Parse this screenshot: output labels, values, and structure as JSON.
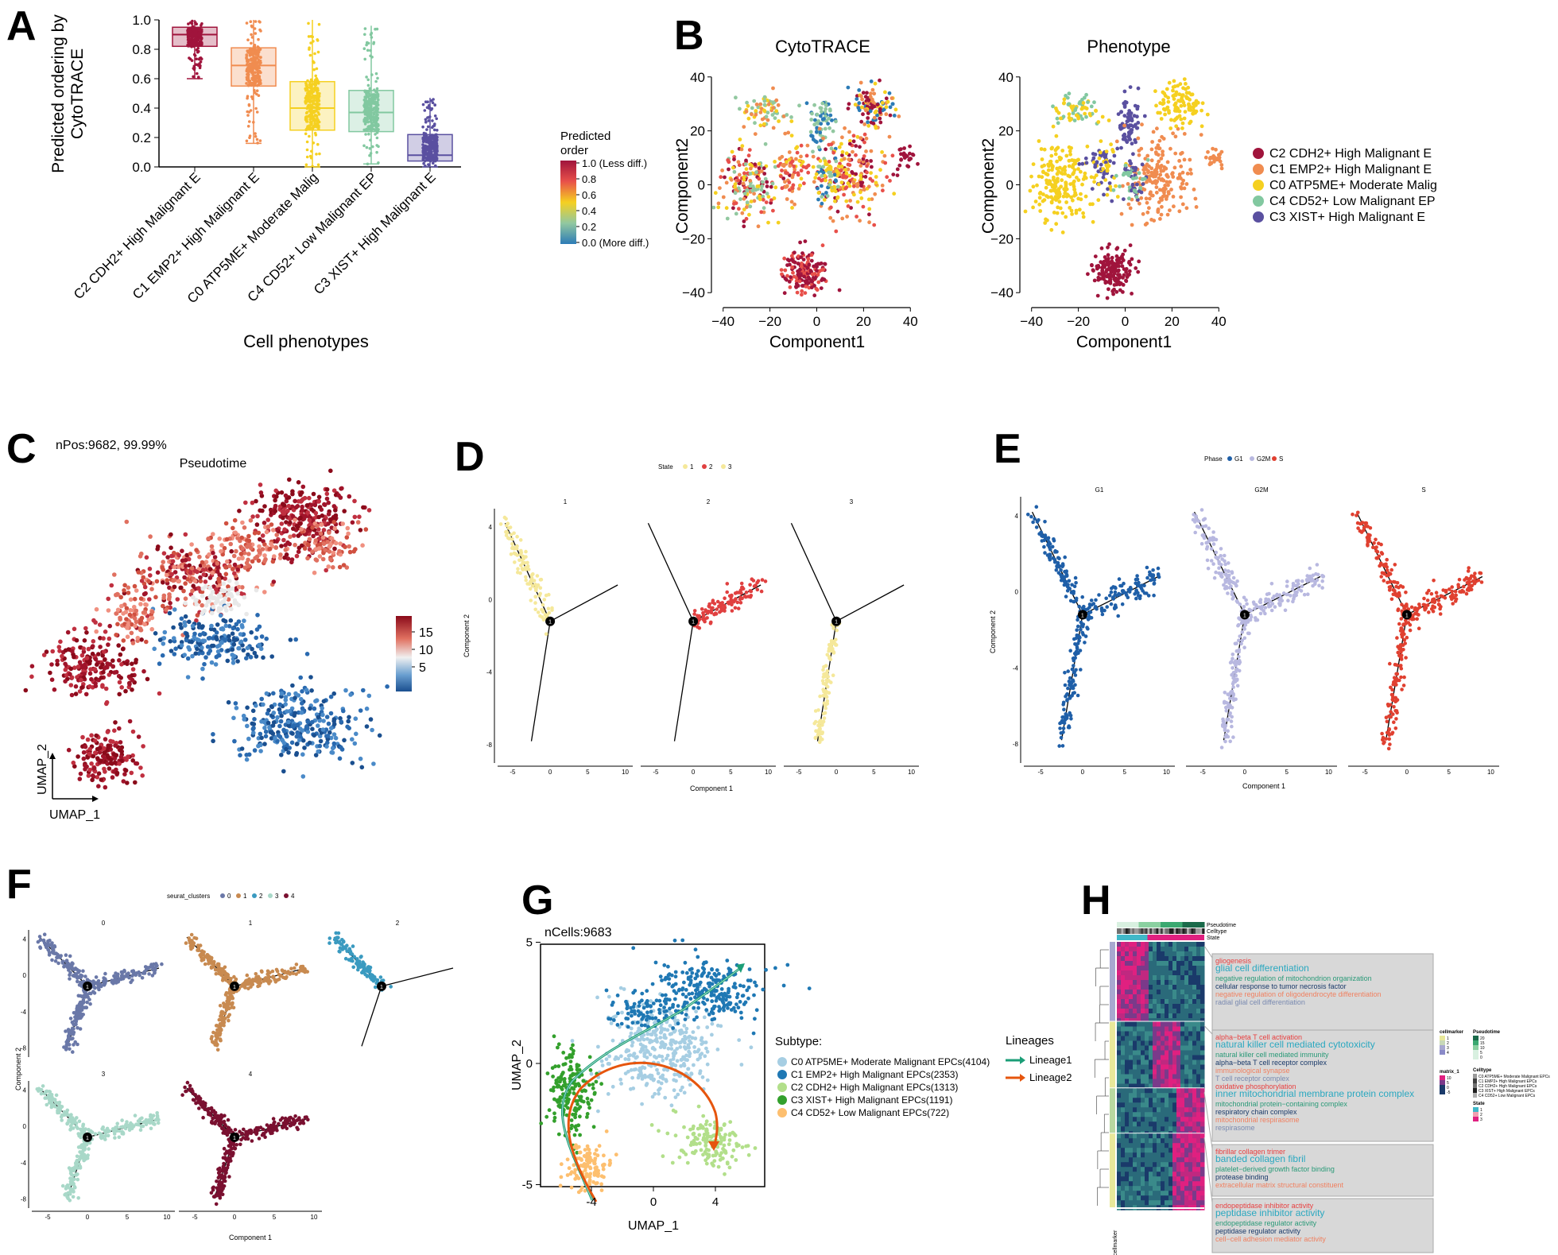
{
  "panel_letters": [
    "A",
    "B",
    "C",
    "D",
    "E",
    "F",
    "G",
    "H"
  ],
  "chart_data": [
    {
      "panel": "A",
      "type": "box",
      "xlabel": "Cell phenotypes",
      "ylabel_lines": [
        "Predicted ordering by",
        "CytoTRACE"
      ],
      "ylim": [
        0,
        1
      ],
      "yticks": [
        "0.0",
        "0.2",
        "0.4",
        "0.6",
        "0.8",
        "1.0"
      ],
      "categories": [
        "C2 CDH2+ High Malignant E",
        "C1 EMP2+ High Malignant E",
        "C0 ATP5ME+ Moderate Malig",
        "C4 CD52+ Low Malignant EP",
        "C3 XIST+ High Malignant E"
      ],
      "colors": [
        "#a0143c",
        "#f08c50",
        "#f5d020",
        "#82c8a0",
        "#5a50a0"
      ],
      "boxes": [
        {
          "q1": 0.82,
          "median": 0.9,
          "q3": 0.95,
          "low": 0.6,
          "high": 1.0
        },
        {
          "q1": 0.55,
          "median": 0.69,
          "q3": 0.81,
          "low": 0.16,
          "high": 1.0
        },
        {
          "q1": 0.25,
          "median": 0.4,
          "q3": 0.58,
          "low": 0.0,
          "high": 1.0
        },
        {
          "q1": 0.24,
          "median": 0.37,
          "q3": 0.52,
          "low": 0.02,
          "high": 0.96
        },
        {
          "q1": 0.04,
          "median": 0.08,
          "q3": 0.22,
          "low": 0.0,
          "high": 0.47
        }
      ]
    },
    {
      "panel": "B",
      "type": "scatter",
      "subplots": [
        {
          "title": "CytoTRACE",
          "xlabel": "Component1",
          "ylabel": "Component2"
        },
        {
          "title": "Phenotype",
          "xlabel": "Component1",
          "ylabel": "Component2"
        }
      ],
      "xticks": [
        "−40",
        "−20",
        "0",
        "20",
        "40"
      ],
      "yticks": [
        "−40",
        "−20",
        "0",
        "20",
        "40"
      ],
      "xlim": [
        -45,
        45
      ],
      "ylim": [
        -42,
        42
      ],
      "colorbar": {
        "title_lines": [
          "Predicted",
          "order"
        ],
        "labels": [
          "1.0 (Less diff.)",
          "0.8",
          "0.6",
          "0.4",
          "0.2",
          "0.0 (More diff.)"
        ],
        "colors": [
          "#a0143c",
          "#e8504a",
          "#f5d020",
          "#92c8a0",
          "#2c7bb6"
        ]
      },
      "legend": [
        {
          "label": "C2 CDH2+ High Malignant E",
          "color": "#a0143c"
        },
        {
          "label": "C1 EMP2+ High Malignant E",
          "color": "#f08c50"
        },
        {
          "label": "C0 ATP5ME+ Moderate Malig",
          "color": "#f5d020"
        },
        {
          "label": "C4 CD52+ Low Malignant EP",
          "color": "#82c8a0"
        },
        {
          "label": "C3 XIST+ High Malignant E",
          "color": "#5a50a0"
        }
      ]
    },
    {
      "panel": "C",
      "type": "scatter",
      "title": "Pseudotime",
      "annotation": "nPos:9682, 99.99%",
      "xlabel": "UMAP_1",
      "ylabel": "UMAP_2",
      "colorbar_labels": [
        "15",
        "10",
        "5"
      ],
      "colorbar_colors": [
        "#8b0a1a",
        "#e07060",
        "#f0f0f0",
        "#6a9fd0",
        "#1a4f8f"
      ]
    },
    {
      "panel": "D",
      "type": "trajectory",
      "legend_title": "State",
      "legend_items": [
        "1",
        "2",
        "3"
      ],
      "legend_colors": [
        "#f5e89a",
        "#e04040",
        "#f5e89a"
      ],
      "facets": [
        "1",
        "2",
        "3"
      ],
      "xlabel": "Component 1",
      "ylabel": "Component 2",
      "xticks": [
        "-5",
        "0",
        "5",
        "10"
      ],
      "yticks": [
        "4",
        "0",
        "-4",
        "-8"
      ]
    },
    {
      "panel": "E",
      "type": "trajectory",
      "legend_title": "Phase",
      "legend_items": [
        "G1",
        "G2M",
        "S"
      ],
      "legend_colors": [
        "#1f5fa8",
        "#b8b8e0",
        "#e04030"
      ],
      "facets": [
        "G1",
        "G2M",
        "S"
      ],
      "xlabel": "Component 1",
      "ylabel": "Component 2",
      "xticks": [
        "-5",
        "0",
        "5",
        "10"
      ],
      "yticks": [
        "4",
        "0",
        "-4",
        "-8"
      ]
    },
    {
      "panel": "F",
      "type": "trajectory",
      "legend_title": "seurat_clusters",
      "legend_items": [
        "0",
        "1",
        "2",
        "3",
        "4"
      ],
      "legend_colors": [
        "#6a78a8",
        "#c88a50",
        "#3a9ac0",
        "#a8d8c8",
        "#7a1030"
      ],
      "facets": [
        "0",
        "1",
        "2",
        "3",
        "4"
      ],
      "xlabel": "Component 1",
      "ylabel": "Component 2",
      "xticks": [
        "-5",
        "0",
        "5",
        "10"
      ],
      "yticks": [
        "4",
        "0",
        "-4",
        "-8"
      ]
    },
    {
      "panel": "G",
      "type": "scatter",
      "annotation": "nCells:9683",
      "xlabel": "UMAP_1",
      "ylabel": "UMAP_2",
      "xticks": [
        "-4",
        "0",
        "4"
      ],
      "yticks": [
        "5",
        "0",
        "-5"
      ],
      "legend_title": "Subtype:",
      "legend": [
        {
          "label": "C0 ATP5ME+ Moderate Malignant EPCs(4104)",
          "color": "#a6cee3"
        },
        {
          "label": "C1 EMP2+ High Malignant EPCs(2353)",
          "color": "#1f78b4"
        },
        {
          "label": "C2 CDH2+ High Malignant EPCs(1313)",
          "color": "#b2df8a"
        },
        {
          "label": "C3 XIST+ High Malignant EPCs(1191)",
          "color": "#33a02c"
        },
        {
          "label": "C4 CD52+ Low Malignant EPCs(722)",
          "color": "#fdbf6f"
        }
      ],
      "lineages_title": "Lineages",
      "lineages": [
        {
          "label": "Lineage1",
          "color": "#1b9e77"
        },
        {
          "label": "Lineage2",
          "color": "#e6550d"
        }
      ]
    },
    {
      "panel": "H",
      "type": "heatmap",
      "annotation_tracks": [
        "Pseudotime",
        "Celltype",
        "State"
      ],
      "row_annotation_label": "cellmarker",
      "term_blocks": [
        {
          "terms": [
            {
              "text": "gliogenesis",
              "color": "#e84040",
              "size": 9
            },
            {
              "text": "glial cell differentiation",
              "color": "#2aa8c0",
              "size": 12
            },
            {
              "text": "negative regulation of mitochondrion organization",
              "color": "#2a9a78",
              "size": 9
            },
            {
              "text": "cellular response to tumor necrosis factor",
              "color": "#1a3a6a",
              "size": 9
            },
            {
              "text": "negative regulation of oligodendrocyte differentiation",
              "color": "#f08060",
              "size": 9
            },
            {
              "text": "radial glial cell differentiation",
              "color": "#7a8ab0",
              "size": 9
            }
          ]
        },
        {
          "terms": [
            {
              "text": "alpha−beta T cell activation",
              "color": "#e84040",
              "size": 9
            },
            {
              "text": "natural killer cell mediated cytotoxicity",
              "color": "#2aa8c0",
              "size": 12
            },
            {
              "text": "natural killer cell mediated immunity",
              "color": "#2a9a78",
              "size": 9
            },
            {
              "text": "alpha−beta T cell receptor complex",
              "color": "#1a3a6a",
              "size": 9
            },
            {
              "text": "immunological synapse",
              "color": "#f08060",
              "size": 9
            },
            {
              "text": "T cell receptor complex",
              "color": "#7a8ab0",
              "size": 9
            },
            {
              "text": "oxidative phosphorylation",
              "color": "#e84040",
              "size": 9
            },
            {
              "text": "inner mitochondrial membrane protein complex",
              "color": "#2aa8c0",
              "size": 12
            },
            {
              "text": "mitochondrial protein−containing complex",
              "color": "#2a9a78",
              "size": 9
            },
            {
              "text": "respiratory chain complex",
              "color": "#1a3a6a",
              "size": 9
            },
            {
              "text": "mitochondrial respirasome",
              "color": "#f08060",
              "size": 9
            },
            {
              "text": "respirasome",
              "color": "#7a8ab0",
              "size": 9
            }
          ]
        },
        {
          "terms": [
            {
              "text": "fibrillar collagen trimer",
              "color": "#e84040",
              "size": 9
            },
            {
              "text": "banded collagen fibril",
              "color": "#2aa8c0",
              "size": 12
            },
            {
              "text": "platelet−derived growth factor binding",
              "color": "#2a9a78",
              "size": 9
            },
            {
              "text": "protease binding",
              "color": "#1a3a6a",
              "size": 9
            },
            {
              "text": "extracellular matrix structural constituent",
              "color": "#f08060",
              "size": 9
            }
          ]
        },
        {
          "terms": [
            {
              "text": "endopeptidase inhibitor activity",
              "color": "#e84040",
              "size": 9
            },
            {
              "text": "peptidase inhibitor activity",
              "color": "#2aa8c0",
              "size": 12
            },
            {
              "text": "endopeptidase regulator activity",
              "color": "#2a9a78",
              "size": 9
            },
            {
              "text": "peptidase regulator activity",
              "color": "#1a3a6a",
              "size": 9
            },
            {
              "text": "cell−cell adhesion mediator activity",
              "color": "#f08060",
              "size": 9
            }
          ]
        }
      ],
      "legends": {
        "cellmarker": {
          "title": "cellmarker",
          "labels": [
            "1",
            "2",
            "3",
            "4"
          ],
          "colors": [
            "#e8e89a",
            "#c8d8b8",
            "#a8a8d0",
            "#8a8ac8"
          ]
        },
        "pseudotime": {
          "title": "Pseudotime",
          "labels": [
            "20",
            "15",
            "10",
            "5",
            "0"
          ],
          "colors": [
            "#1a6a4a",
            "#3aa870",
            "#8ad0a0",
            "#d8f0e0"
          ]
        },
        "matrix": {
          "title": "matrix_1",
          "labels": [
            "10",
            "5",
            "0",
            "-5"
          ],
          "colors": [
            "#e02080",
            "#7a3a8a",
            "#1a3a6a"
          ]
        },
        "celltype": {
          "title": "Celltype",
          "labels": [
            "C0 ATP5ME+ Moderate Malignant EPCs",
            "C1 EMP2+ High Malignant EPCs",
            "C2 CDH2+ High Malignant EPCs",
            "C3 XIST+ High Malignant EPCs",
            "C4 CD52+ Low Malignant EPCs"
          ],
          "colors": [
            "#9a9a9a",
            "#404040",
            "#707070",
            "#202020",
            "#b0b0b0"
          ]
        },
        "state": {
          "title": "State",
          "labels": [
            "1",
            "2",
            "3"
          ],
          "colors": [
            "#40b8c8",
            "#f0a0b0",
            "#e02080"
          ]
        }
      }
    }
  ]
}
